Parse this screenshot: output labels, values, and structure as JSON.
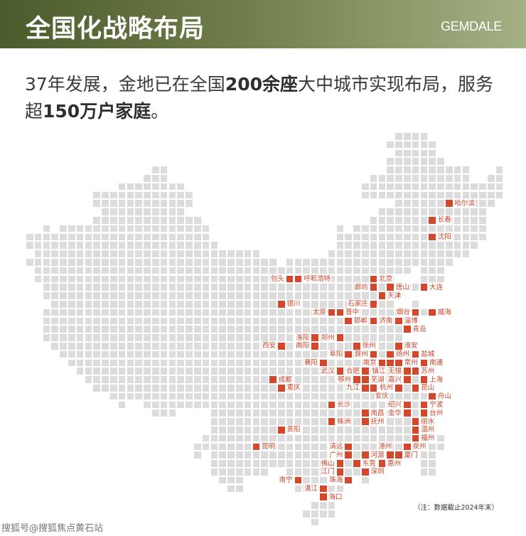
{
  "header": {
    "title": "全国化战略布局",
    "brand": "GEMDALE",
    "gradient": [
      "#4b5b2b",
      "#a4b183"
    ]
  },
  "intro": {
    "line1_a": "37年发展，金地已在全国",
    "line1_b": "200余座",
    "line1_c": "大中城市实现布局，服务",
    "line2_a": "超",
    "line2_b": "150万户家庭",
    "line2_c": "。"
  },
  "map": {
    "colors": {
      "land": "#dcdcdc",
      "city": "#d5472a",
      "label": "#c9452a"
    },
    "rows": [
      [
        [
          44,
          47
        ]
      ],
      [
        [
          43,
          48
        ]
      ],
      [
        [
          44,
          48
        ]
      ],
      [
        [
          43,
          49
        ]
      ],
      [
        [
          15,
          16
        ],
        [
          43,
          52
        ],
        [
          56,
          56
        ]
      ],
      [
        [
          14,
          16
        ],
        [
          41,
          52
        ],
        [
          55,
          56
        ]
      ],
      [
        [
          11,
          18
        ],
        [
          40,
          56
        ]
      ],
      [
        [
          8,
          19
        ],
        [
          40,
          56
        ]
      ],
      [
        [
          8,
          19
        ],
        [
          44,
          55
        ]
      ],
      [
        [
          9,
          18
        ],
        [
          42,
          54
        ]
      ],
      [
        [
          8,
          20
        ],
        [
          41,
          54
        ]
      ],
      [
        [
          2,
          2
        ],
        [
          4,
          21
        ],
        [
          37,
          37
        ],
        [
          39,
          54
        ]
      ],
      [
        [
          0,
          21
        ],
        [
          37,
          54
        ]
      ],
      [
        [
          0,
          22
        ],
        [
          37,
          53
        ]
      ],
      [
        [
          1,
          27
        ],
        [
          36,
          52
        ]
      ],
      [
        [
          0,
          29
        ],
        [
          31,
          50
        ]
      ],
      [
        [
          1,
          45
        ],
        [
          47,
          49
        ]
      ],
      [
        [
          1,
          43
        ],
        [
          47,
          49
        ]
      ],
      [
        [
          2,
          47
        ]
      ],
      [
        [
          2,
          42
        ]
      ],
      [
        [
          3,
          43
        ],
        [
          46,
          46
        ]
      ],
      [
        [
          2,
          48
        ]
      ],
      [
        [
          2,
          44
        ]
      ],
      [
        [
          2,
          45
        ]
      ],
      [
        [
          2,
          44
        ]
      ],
      [
        [
          3,
          44
        ]
      ],
      [
        [
          4,
          46
        ]
      ],
      [
        [
          5,
          47
        ]
      ],
      [
        [
          6,
          46
        ]
      ],
      [
        [
          7,
          47
        ]
      ],
      [
        [
          8,
          46
        ]
      ],
      [
        [
          10,
          48
        ]
      ],
      [
        [
          11,
          11
        ],
        [
          14,
          47
        ]
      ],
      [
        [
          15,
          17
        ],
        [
          22,
          47
        ]
      ],
      [
        [
          22,
          46
        ]
      ],
      [
        [
          22,
          46
        ]
      ],
      [
        [
          21,
          46
        ],
        [
          49,
          49
        ]
      ],
      [
        [
          20,
          45
        ],
        [
          48,
          49
        ]
      ],
      [
        [
          20,
          20
        ],
        [
          22,
          44
        ],
        [
          47,
          48
        ]
      ],
      [
        [
          22,
          42
        ],
        [
          47,
          48
        ]
      ],
      [
        [
          22,
          28
        ],
        [
          31,
          40
        ],
        [
          47,
          48
        ]
      ],
      [
        [
          23,
          25
        ],
        [
          32,
          38
        ],
        [
          40,
          40
        ]
      ],
      [
        [
          24,
          25
        ],
        [
          32,
          37
        ]
      ],
      [
        [
          35,
          35
        ]
      ],
      [
        [
          34,
          36
        ]
      ],
      [
        [
          33,
          36
        ]
      ],
      [
        [
          34,
          34
        ]
      ]
    ],
    "cities": [
      {
        "name": "哈尔滨",
        "r": 8,
        "c": 50,
        "side": "right"
      },
      {
        "name": "长春",
        "r": 10,
        "c": 48,
        "side": "right"
      },
      {
        "name": "沈阳",
        "r": 12,
        "c": 48,
        "side": "right"
      },
      {
        "name": "包头",
        "r": 17,
        "c": 31,
        "side": "left"
      },
      {
        "name": "呼和浩特",
        "r": 17,
        "c": 32,
        "side": "right"
      },
      {
        "name": "北京",
        "r": 17,
        "c": 41,
        "side": "right"
      },
      {
        "name": "廊坊",
        "r": 18,
        "c": 41,
        "side": "left"
      },
      {
        "name": "唐山",
        "r": 18,
        "c": 43,
        "side": "right"
      },
      {
        "name": "大连",
        "r": 18,
        "c": 47,
        "side": "right"
      },
      {
        "name": "天津",
        "r": 19,
        "c": 42,
        "side": "right"
      },
      {
        "name": "银川",
        "r": 20,
        "c": 30,
        "side": "right"
      },
      {
        "name": "石家庄",
        "r": 20,
        "c": 41,
        "side": "left"
      },
      {
        "name": "太原",
        "r": 21,
        "c": 36,
        "side": "left"
      },
      {
        "name": "晋中",
        "r": 21,
        "c": 37,
        "side": "right"
      },
      {
        "name": "烟台",
        "r": 21,
        "c": 46,
        "side": "left"
      },
      {
        "name": "威海",
        "r": 21,
        "c": 48,
        "side": "right"
      },
      {
        "name": "邯郸",
        "r": 22,
        "c": 38,
        "side": "right"
      },
      {
        "name": "济南",
        "r": 22,
        "c": 41,
        "side": "right"
      },
      {
        "name": "淄博",
        "r": 22,
        "c": 44,
        "side": "right"
      },
      {
        "name": "青岛",
        "r": 23,
        "c": 45,
        "side": "right"
      },
      {
        "name": "洛阳",
        "r": 24,
        "c": 34,
        "side": "left"
      },
      {
        "name": "郑州",
        "r": 24,
        "c": 37,
        "side": "left"
      },
      {
        "name": "西安",
        "r": 25,
        "c": 30,
        "side": "left"
      },
      {
        "name": "南阳",
        "r": 25,
        "c": 34,
        "side": "left"
      },
      {
        "name": "徐州",
        "r": 25,
        "c": 39,
        "side": "right"
      },
      {
        "name": "淮安",
        "r": 25,
        "c": 44,
        "side": "right"
      },
      {
        "name": "阜阳",
        "r": 26,
        "c": 38,
        "side": "left"
      },
      {
        "name": "滁州",
        "r": 26,
        "c": 41,
        "side": "left"
      },
      {
        "name": "扬州",
        "r": 26,
        "c": 43,
        "side": "right"
      },
      {
        "name": "盐城",
        "r": 26,
        "c": 46,
        "side": "right"
      },
      {
        "name": "襄阳",
        "r": 27,
        "c": 35,
        "side": "left"
      },
      {
        "name": "南京",
        "r": 27,
        "c": 42,
        "side": "left"
      },
      {
        "name": "镇江",
        "r": 27,
        "c": 43,
        "side": "below-left"
      },
      {
        "name": "常州",
        "r": 27,
        "c": 44,
        "side": "right"
      },
      {
        "name": "南通",
        "r": 27,
        "c": 47,
        "side": "right"
      },
      {
        "name": "武汉",
        "r": 28,
        "c": 37,
        "side": "left"
      },
      {
        "name": "合肥",
        "r": 28,
        "c": 40,
        "side": "left"
      },
      {
        "name": "无锡",
        "r": 28,
        "c": 45,
        "side": "left"
      },
      {
        "name": "苏州",
        "r": 28,
        "c": 46,
        "side": "right"
      },
      {
        "name": "成都",
        "r": 29,
        "c": 29,
        "side": "right"
      },
      {
        "name": "鄂州",
        "r": 29,
        "c": 39,
        "side": "left"
      },
      {
        "name": "芜湖",
        "r": 29,
        "c": 40,
        "side": "right"
      },
      {
        "name": "嘉兴",
        "r": 29,
        "c": 45,
        "side": "left"
      },
      {
        "name": "上海",
        "r": 29,
        "c": 47,
        "side": "right"
      },
      {
        "name": "重庆",
        "r": 30,
        "c": 30,
        "side": "right"
      },
      {
        "name": "九江",
        "r": 30,
        "c": 40,
        "side": "left"
      },
      {
        "name": "安庆",
        "r": 30,
        "c": 41,
        "side": "below-right"
      },
      {
        "name": "杭州",
        "r": 30,
        "c": 44,
        "side": "left"
      },
      {
        "name": "昆山",
        "r": 30,
        "c": 46,
        "side": "right"
      },
      {
        "name": "舟山",
        "r": 31,
        "c": 48,
        "side": "right"
      },
      {
        "name": "长沙",
        "r": 32,
        "c": 36,
        "side": "right"
      },
      {
        "name": "绍兴",
        "r": 32,
        "c": 45,
        "side": "left"
      },
      {
        "name": "宁波",
        "r": 32,
        "c": 47,
        "side": "right"
      },
      {
        "name": "南昌",
        "r": 33,
        "c": 40,
        "side": "right"
      },
      {
        "name": "金华",
        "r": 33,
        "c": 45,
        "side": "left"
      },
      {
        "name": "台州",
        "r": 33,
        "c": 47,
        "side": "right"
      },
      {
        "name": "株洲",
        "r": 34,
        "c": 36,
        "side": "right"
      },
      {
        "name": "抚州",
        "r": 34,
        "c": 40,
        "side": "right"
      },
      {
        "name": "丽水",
        "r": 34,
        "c": 46,
        "side": "right"
      },
      {
        "name": "贵阳",
        "r": 35,
        "c": 30,
        "side": "right"
      },
      {
        "name": "温州",
        "r": 35,
        "c": 46,
        "side": "right"
      },
      {
        "name": "福州",
        "r": 36,
        "c": 46,
        "side": "right"
      },
      {
        "name": "昆明",
        "r": 37,
        "c": 27,
        "side": "right"
      },
      {
        "name": "清远",
        "r": 37,
        "c": 38,
        "side": "left"
      },
      {
        "name": "泉州",
        "r": 37,
        "c": 45,
        "side": "right"
      },
      {
        "name": "广州",
        "r": 38,
        "c": 38,
        "side": "left"
      },
      {
        "name": "河源",
        "r": 38,
        "c": 40,
        "side": "right"
      },
      {
        "name": "漳州",
        "r": 38,
        "c": 43,
        "side": "above-left"
      },
      {
        "name": "厦门",
        "r": 38,
        "c": 44,
        "side": "right"
      },
      {
        "name": "佛山",
        "r": 39,
        "c": 37,
        "side": "left"
      },
      {
        "name": "东莞",
        "r": 39,
        "c": 39,
        "side": "right"
      },
      {
        "name": "惠州",
        "r": 39,
        "c": 42,
        "side": "right"
      },
      {
        "name": "江门",
        "r": 40,
        "c": 37,
        "side": "left"
      },
      {
        "name": "深圳",
        "r": 40,
        "c": 40,
        "side": "right"
      },
      {
        "name": "南宁",
        "r": 41,
        "c": 32,
        "side": "left"
      },
      {
        "name": "珠海",
        "r": 41,
        "c": 38,
        "side": "left"
      },
      {
        "name": "湛江",
        "r": 42,
        "c": 35,
        "side": "left"
      },
      {
        "name": "海口",
        "r": 43,
        "c": 35,
        "side": "right"
      }
    ],
    "note": "（注：数据截止2024年末）"
  },
  "watermark": "搜狐号@搜狐焦点黄石站"
}
